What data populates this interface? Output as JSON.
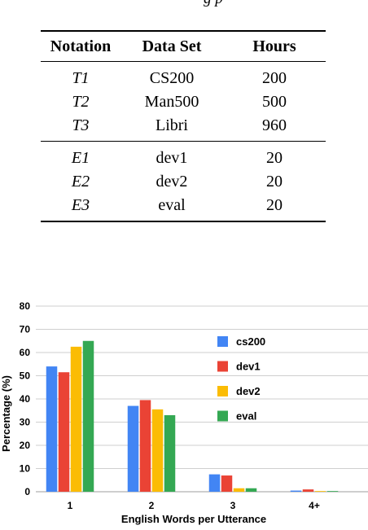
{
  "caption_fragment": "g        p",
  "table": {
    "headers": [
      "Notation",
      "Data Set",
      "Hours"
    ],
    "groups": [
      [
        {
          "notation": "T1",
          "dataset": "CS200",
          "hours": "200"
        },
        {
          "notation": "T2",
          "dataset": "Man500",
          "hours": "500"
        },
        {
          "notation": "T3",
          "dataset": "Libri",
          "hours": "960"
        }
      ],
      [
        {
          "notation": "E1",
          "dataset": "dev1",
          "hours": "20"
        },
        {
          "notation": "E2",
          "dataset": "dev2",
          "hours": "20"
        },
        {
          "notation": "E3",
          "dataset": "eval",
          "hours": "20"
        }
      ]
    ]
  },
  "chart_data": {
    "type": "bar",
    "categories": [
      "1",
      "2",
      "3",
      "4+"
    ],
    "series": [
      {
        "name": "cs200",
        "color": "#4285f4",
        "values": [
          54,
          37,
          7.5,
          0.5
        ]
      },
      {
        "name": "dev1",
        "color": "#ea4335",
        "values": [
          51.5,
          39.5,
          7,
          1
        ]
      },
      {
        "name": "dev2",
        "color": "#fbbc04",
        "values": [
          62.5,
          35.5,
          1.5,
          0.3
        ]
      },
      {
        "name": "eval",
        "color": "#34a853",
        "values": [
          65,
          33,
          1.5,
          0.3
        ]
      }
    ],
    "xlabel": "English Words per Utterance",
    "ylabel": "Percentage (%)",
    "ylim": [
      0,
      80
    ],
    "yticks": [
      "0",
      "10",
      "20",
      "30",
      "40",
      "50",
      "60",
      "70",
      "80"
    ],
    "grid": true,
    "legend_position": "right"
  }
}
